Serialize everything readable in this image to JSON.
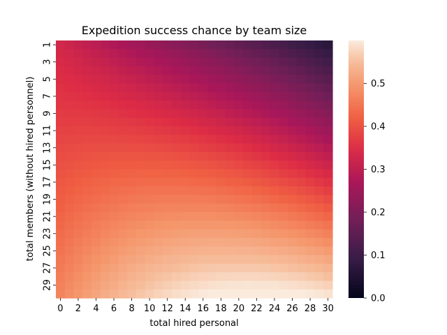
{
  "chart_data": {
    "type": "heatmap",
    "title": "Expedition success chance by team size",
    "xlabel": "total hired personal",
    "ylabel": "total members (without hired personnel)",
    "x": [
      0,
      1,
      2,
      3,
      4,
      5,
      6,
      7,
      8,
      9,
      10,
      11,
      12,
      13,
      14,
      15,
      16,
      17,
      18,
      19,
      20,
      21,
      22,
      23,
      24,
      25,
      26,
      27,
      28,
      29,
      30
    ],
    "y": [
      1,
      2,
      3,
      4,
      5,
      6,
      7,
      8,
      9,
      10,
      11,
      12,
      13,
      14,
      15,
      16,
      17,
      18,
      19,
      20,
      21,
      22,
      23,
      24,
      25,
      26,
      27,
      28,
      29,
      30
    ],
    "x_tick_labels": [
      "0",
      "2",
      "4",
      "6",
      "8",
      "10",
      "12",
      "14",
      "16",
      "18",
      "20",
      "22",
      "24",
      "26",
      "28",
      "30"
    ],
    "y_tick_labels": [
      "1",
      "3",
      "5",
      "7",
      "9",
      "11",
      "13",
      "15",
      "17",
      "19",
      "21",
      "23",
      "25",
      "27",
      "29"
    ],
    "value_range": [
      0.0,
      0.6
    ],
    "colorbar": {
      "ticks": [
        0.0,
        0.1,
        0.2,
        0.3,
        0.4,
        0.5
      ],
      "tick_labels": [
        "0.0",
        "0.1",
        "0.2",
        "0.3",
        "0.4",
        "0.5"
      ]
    },
    "corner_values": {
      "members_1_hired_0": 0.33,
      "members_1_hired_30": 0.07,
      "members_30_hired_0": 0.47,
      "members_30_hired_30": 0.59
    },
    "grid": false
  }
}
